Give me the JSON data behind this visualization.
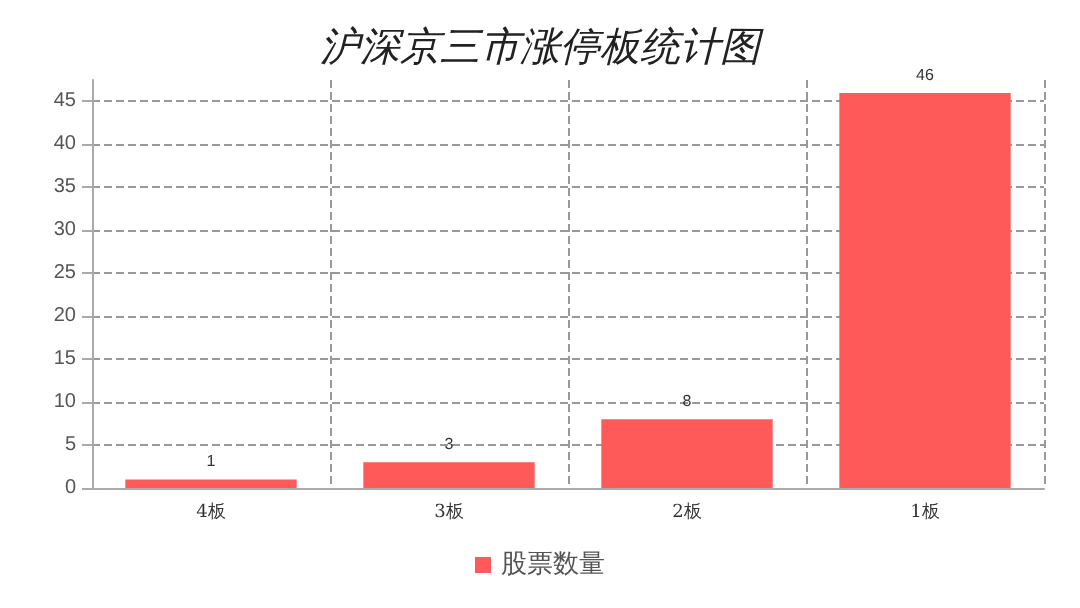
{
  "chart_data": {
    "type": "bar",
    "title": "沪深京三市涨停板统计图",
    "categories": [
      "4板",
      "3板",
      "2板",
      "1板"
    ],
    "series": [
      {
        "name": "股票数量",
        "color": "#ff5a5a",
        "values": [
          1,
          3,
          8,
          46
        ]
      }
    ],
    "ylim": [
      0,
      47.5
    ],
    "yticks": [
      0,
      5,
      10,
      15,
      20,
      25,
      30,
      35,
      40,
      45
    ],
    "grid": true,
    "legend": "bottom",
    "data_labels": true
  }
}
